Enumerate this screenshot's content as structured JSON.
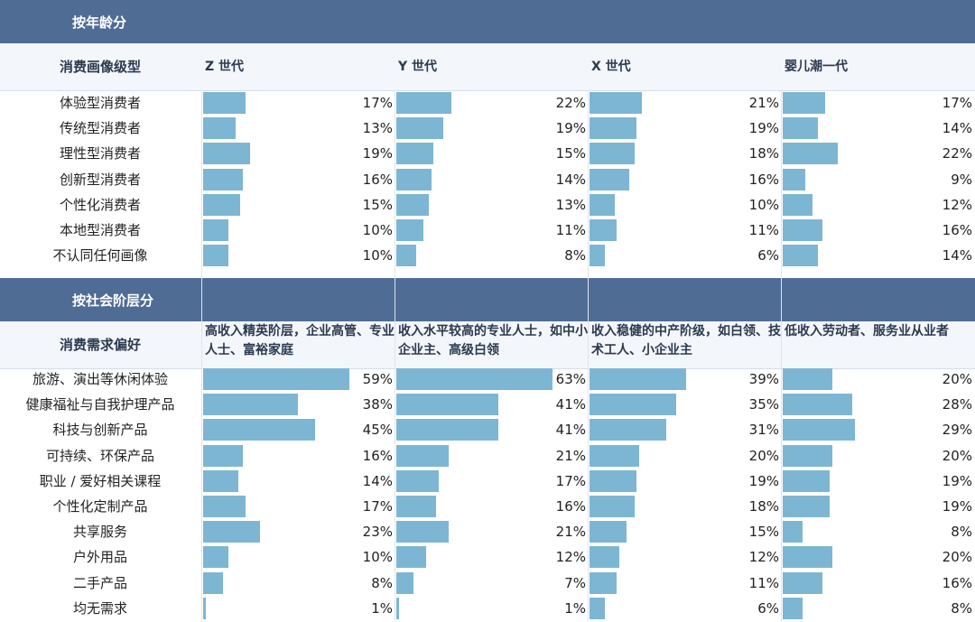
{
  "chart_data": [
    {
      "type": "bar",
      "section_title": "按年龄分",
      "row_header": "消费画像级型",
      "columns": [
        "Z 世代",
        "Y 世代",
        "X 世代",
        "婴儿潮一代"
      ],
      "categories": [
        "体验型消费者",
        "传统型消费者",
        "理性型消费者",
        "创新型消费者",
        "个性化消费者",
        "本地型消费者",
        "不认同任何画像"
      ],
      "series": [
        {
          "name": "Z 世代",
          "values": [
            17,
            13,
            19,
            16,
            15,
            10,
            10
          ]
        },
        {
          "name": "Y 世代",
          "values": [
            22,
            19,
            15,
            14,
            13,
            11,
            8
          ]
        },
        {
          "name": "X 世代",
          "values": [
            21,
            19,
            18,
            16,
            10,
            11,
            6
          ]
        },
        {
          "name": "婴儿潮一代",
          "values": [
            17,
            14,
            22,
            9,
            12,
            16,
            14
          ]
        }
      ],
      "unit": "%"
    },
    {
      "type": "bar",
      "section_title": "按社会阶层分",
      "row_header": "消费需求偏好",
      "columns": [
        "高收入精英阶层，企业高管、专业人士、富裕家庭",
        "收入水平较高的专业人士，如中小企业主、高级白领",
        "收入稳健的中产阶级，如白领、技术工人、小企业主",
        "低收入劳动者、服务业从业者"
      ],
      "categories": [
        "旅游、演出等休闲体验",
        "健康福祉与自我护理产品",
        "科技与创新产品",
        "可持续、环保产品",
        "职业 / 爱好相关课程",
        "个性化定制产品",
        "共享服务",
        "户外用品",
        "二手产品",
        "均无需求"
      ],
      "series": [
        {
          "name": "高收入精英阶层，企业高管、专业人士、富裕家庭",
          "values": [
            59,
            38,
            45,
            16,
            14,
            17,
            23,
            10,
            8,
            1
          ]
        },
        {
          "name": "收入水平较高的专业人士，如中小企业主、高级白领",
          "values": [
            63,
            41,
            41,
            21,
            17,
            16,
            21,
            12,
            7,
            1
          ]
        },
        {
          "name": "收入稳健的中产阶级，如白领、技术工人、小企业主",
          "values": [
            39,
            35,
            31,
            20,
            19,
            18,
            15,
            12,
            11,
            6
          ]
        },
        {
          "name": "低收入劳动者、服务业从业者",
          "values": [
            20,
            28,
            29,
            20,
            19,
            19,
            8,
            20,
            16,
            8
          ]
        }
      ],
      "unit": "%"
    }
  ],
  "colors": {
    "header": "#4f6c95",
    "bar": "#7db6d3",
    "header_band": "#f3f6fa"
  }
}
